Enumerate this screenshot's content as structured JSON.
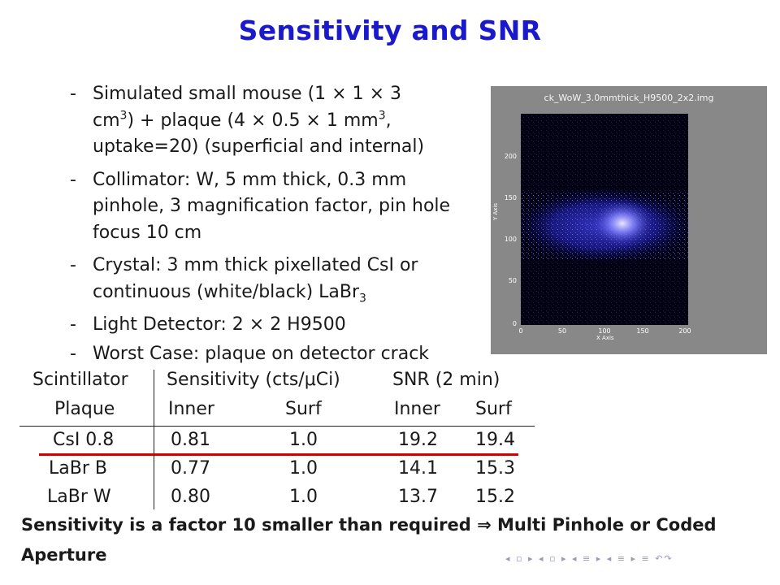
{
  "slide": {
    "title": "Sensitivity and SNR",
    "bullets": [
      {
        "dash": "-",
        "line1": "Simulated small mouse (1 × 1 × 3",
        "line2a": "cm",
        "line2sup": "3",
        "line2b": ") + plaque (4 × 0.5 × 1 mm",
        "line2sup2": "3",
        "line2c": ",",
        "line3": "uptake=20) (superficial and internal)"
      },
      {
        "dash": "-",
        "text": "Collimator: W, 5 mm thick, 0.3 mm pinhole, 3 magnification factor, pin hole focus 10 cm"
      },
      {
        "dash": "-",
        "text_a": "Crystal: 3 mm thick pixellated CsI or continuous (white/black) LaBr",
        "text_sub": "3"
      },
      {
        "dash": "-",
        "text": "Light Detector: 2 × 2 H9500"
      },
      {
        "dash": "-",
        "text": "Worst Case: plaque on detector crack"
      }
    ],
    "image": {
      "title": "ck_WoW_3.0mmthick_H9500_2x2.img",
      "x_axis_label": "X Axis",
      "y_axis_label": "Y Axis",
      "y_ticks": [
        "200",
        "150",
        "100",
        "50",
        "0"
      ],
      "x_ticks": [
        "0",
        "50",
        "100",
        "150",
        "200"
      ]
    },
    "table": {
      "header1": [
        "Scintillator",
        "Sensitivity (cts/μCi)",
        "SNR (2 min)"
      ],
      "header2": [
        "Plaque",
        "Inner",
        "Surf",
        "Inner",
        "Surf"
      ],
      "rows": [
        [
          "CsI 0.8",
          "0.81",
          "1.0",
          "19.2",
          "19.4"
        ],
        [
          "LaBr B",
          "0.77",
          "1.0",
          "14.1",
          "15.3"
        ],
        [
          "LaBr W",
          "0.80",
          "1.0",
          "13.7",
          "15.2"
        ]
      ]
    },
    "conclusion": "Sensitivity is a factor 10 smaller than required ⇒ Multi Pinhole or Coded Aperture",
    "nav_symbols": "◂ ▫ ▸ ◂ ▫ ▸ ◂ ≡ ▸ ◂ ≡ ▸ ≡ ↶↷"
  }
}
